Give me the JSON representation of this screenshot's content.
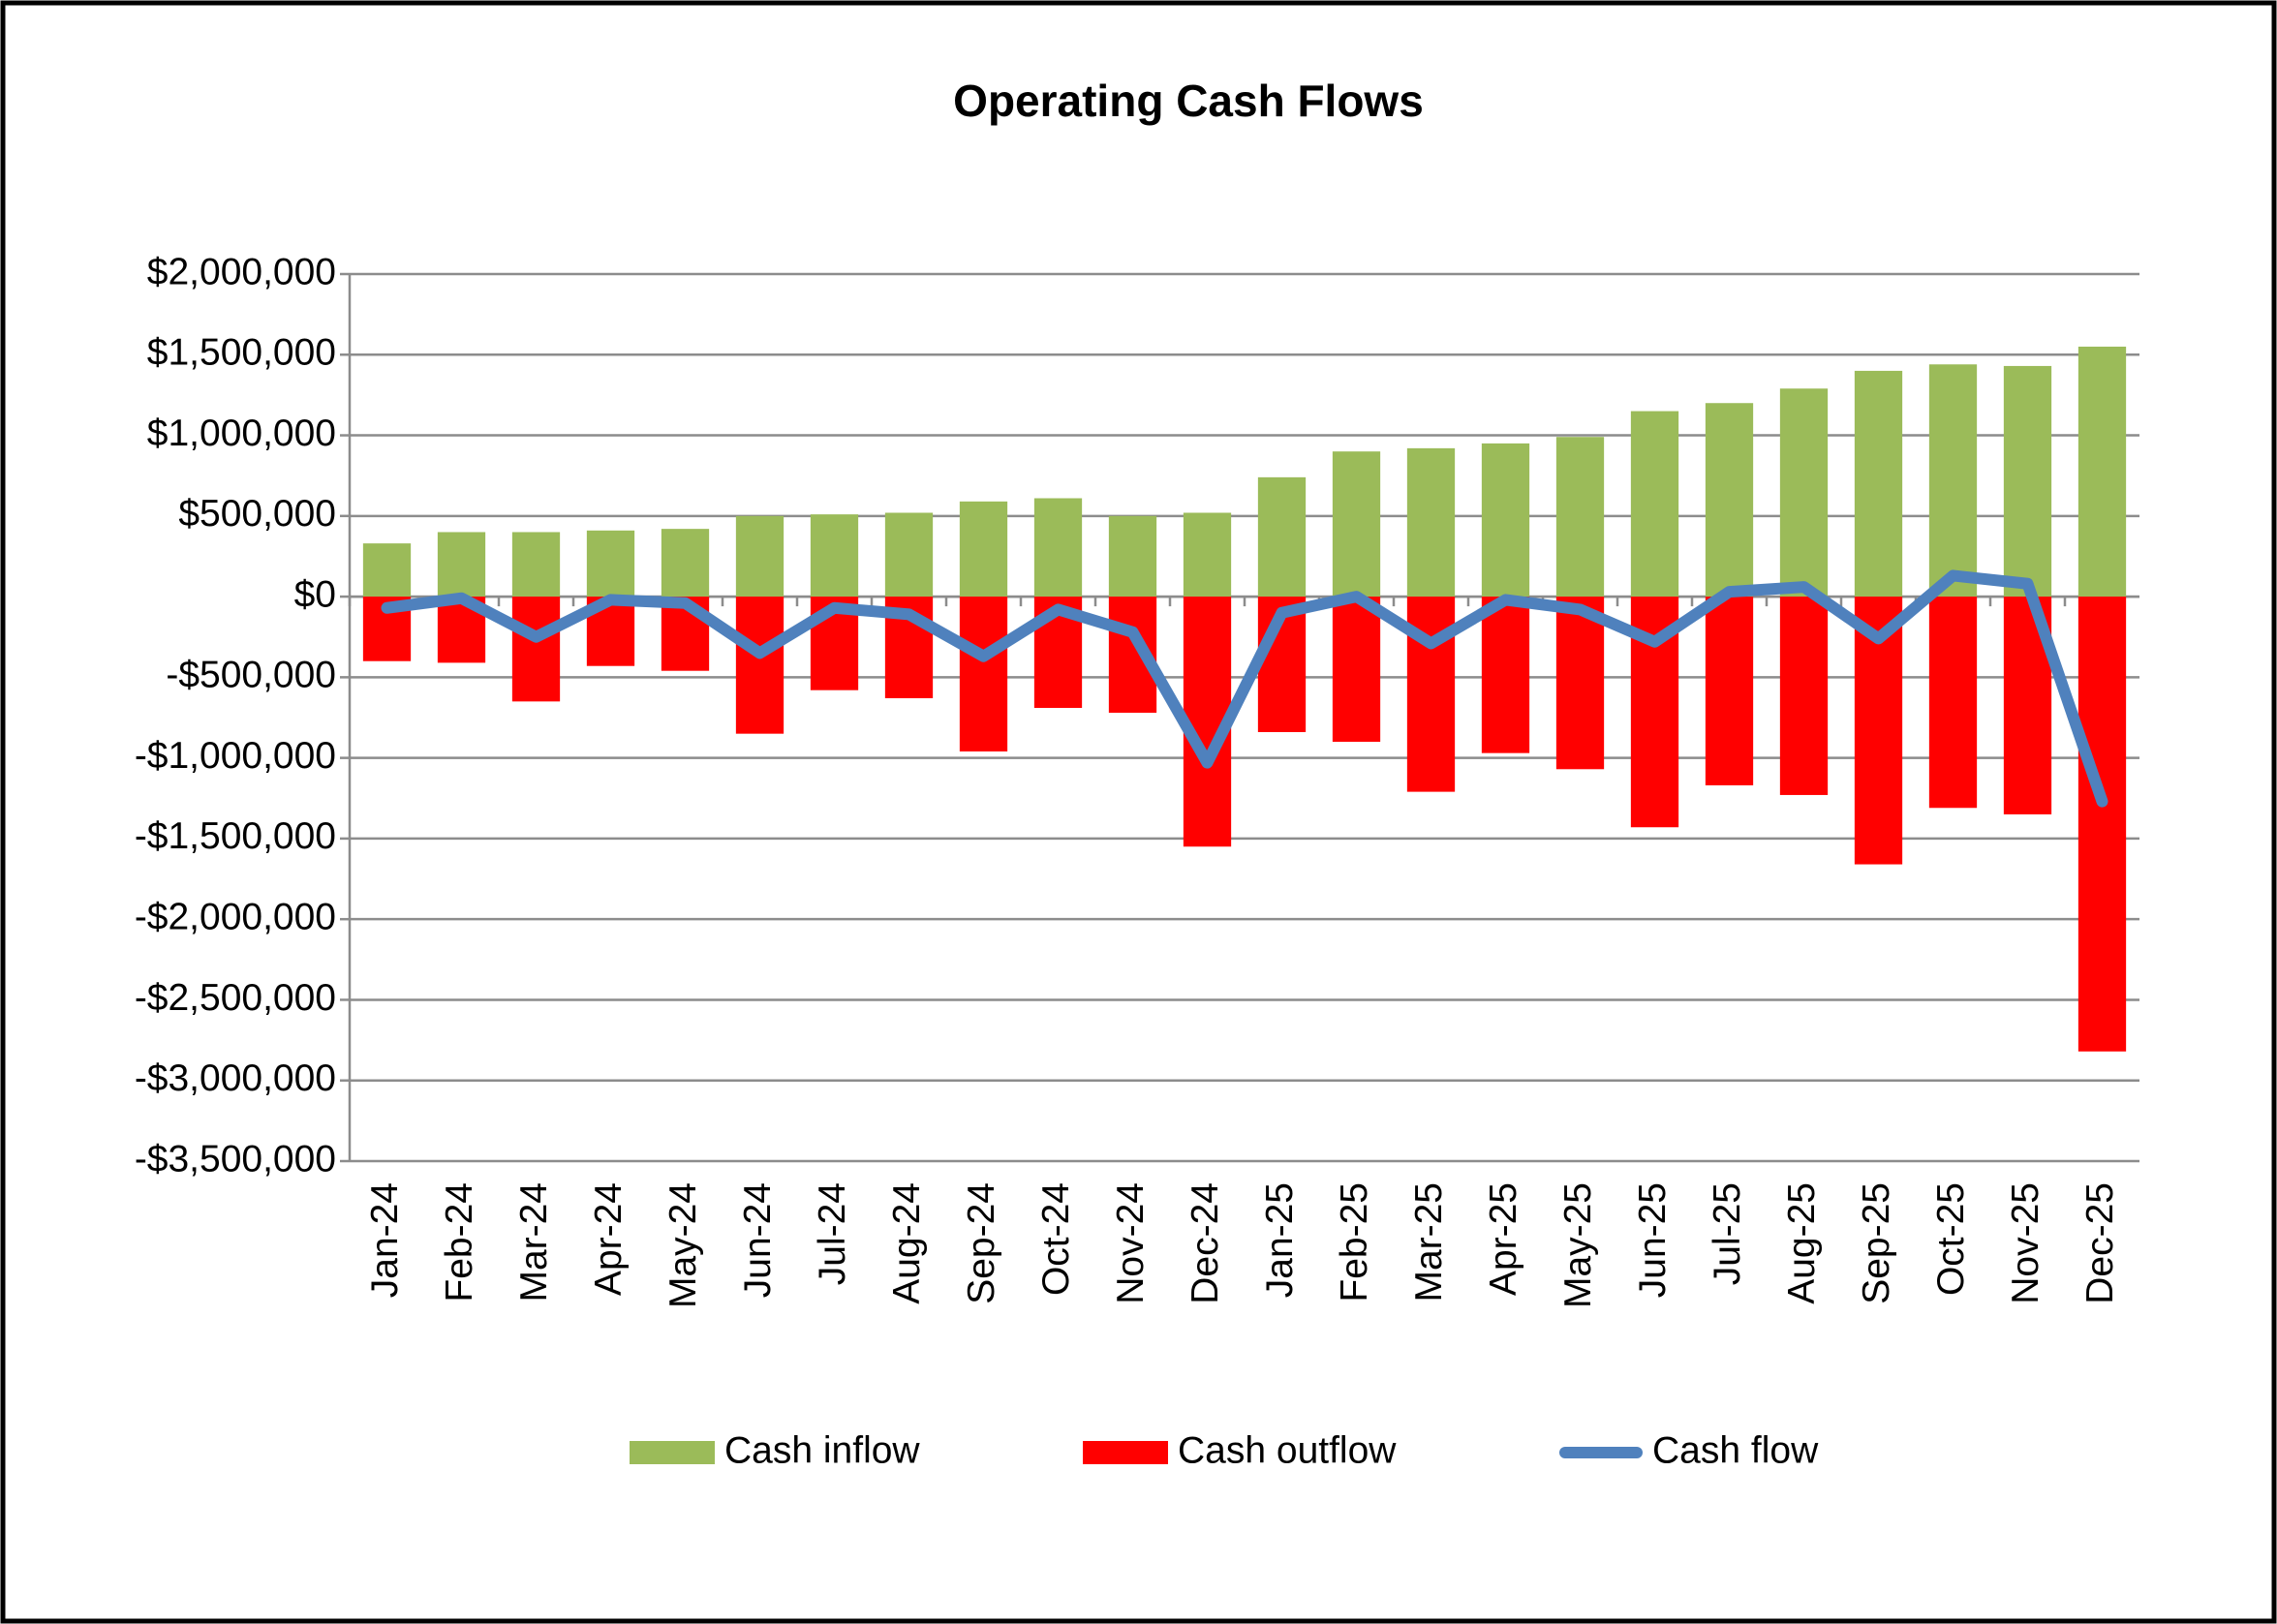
{
  "chart_data": {
    "type": "bar_line",
    "title": "Operating Cash Flows",
    "categories": [
      "Jan-24",
      "Feb-24",
      "Mar-24",
      "Apr-24",
      "May-24",
      "Jun-24",
      "Jul-24",
      "Aug-24",
      "Sep-24",
      "Oct-24",
      "Nov-24",
      "Dec-24",
      "Jan-25",
      "Feb-25",
      "Mar-25",
      "Apr-25",
      "May-25",
      "Jun-25",
      "Jul-25",
      "Aug-25",
      "Sep-25",
      "Oct-25",
      "Nov-25",
      "Dec-25"
    ],
    "series": [
      {
        "name": "Cash inflow",
        "type": "bar",
        "color": "#9bbb59",
        "values": [
          330000,
          400000,
          400000,
          410000,
          420000,
          500000,
          510000,
          520000,
          590000,
          610000,
          500000,
          520000,
          740000,
          900000,
          920000,
          950000,
          990000,
          1150000,
          1200000,
          1290000,
          1400000,
          1440000,
          1430000,
          1550000
        ]
      },
      {
        "name": "Cash outflow",
        "type": "bar",
        "color": "#ff0000",
        "values": [
          -400000,
          -410000,
          -650000,
          -430000,
          -460000,
          -850000,
          -580000,
          -630000,
          -960000,
          -690000,
          -720000,
          -1550000,
          -840000,
          -900000,
          -1210000,
          -970000,
          -1070000,
          -1430000,
          -1170000,
          -1230000,
          -1660000,
          -1310000,
          -1350000,
          -2820000
        ]
      },
      {
        "name": "Cash flow",
        "type": "line",
        "color": "#4f81bd",
        "values": [
          -70000,
          -10000,
          -250000,
          -20000,
          -40000,
          -350000,
          -70000,
          -110000,
          -370000,
          -80000,
          -220000,
          -1030000,
          -100000,
          0,
          -290000,
          -20000,
          -80000,
          -280000,
          30000,
          60000,
          -260000,
          130000,
          80000,
          -1270000
        ]
      }
    ],
    "ylim": [
      -3500000,
      2000000
    ],
    "yticks": [
      {
        "value": -3500000,
        "label": "-$3,500,000"
      },
      {
        "value": -3000000,
        "label": "-$3,000,000"
      },
      {
        "value": -2500000,
        "label": "-$2,500,000"
      },
      {
        "value": -2000000,
        "label": "-$2,000,000"
      },
      {
        "value": -1500000,
        "label": "-$1,500,000"
      },
      {
        "value": -1000000,
        "label": "-$1,000,000"
      },
      {
        "value": -500000,
        "label": "-$500,000"
      },
      {
        "value": 0,
        "label": "$0"
      },
      {
        "value": 500000,
        "label": "$500,000"
      },
      {
        "value": 1000000,
        "label": "$1,000,000"
      },
      {
        "value": 1500000,
        "label": "$1,500,000"
      },
      {
        "value": 2000000,
        "label": "$2,000,000"
      }
    ],
    "grid": true,
    "legend": "bottom"
  }
}
